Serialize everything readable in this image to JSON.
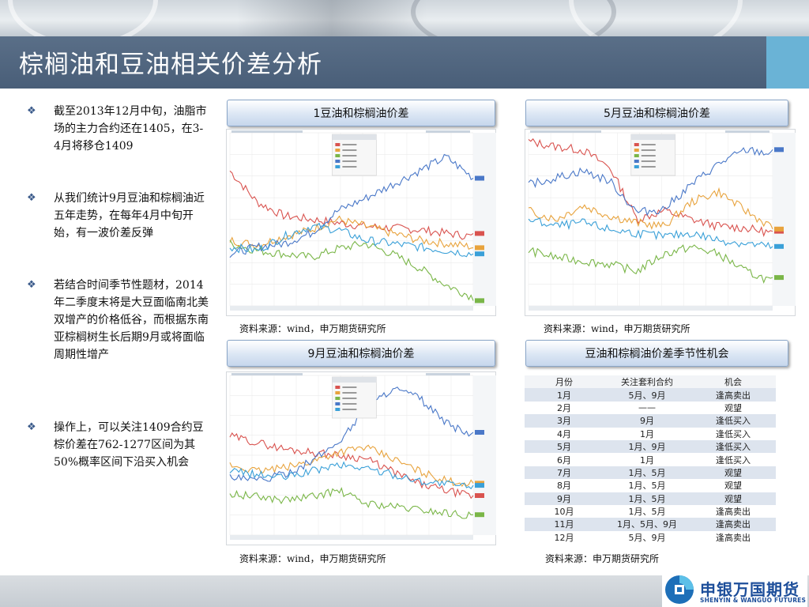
{
  "header": {
    "title": "棕榈油和豆油相关价差分析"
  },
  "bullets": [
    "截至2013年12月中旬，油脂市场的主力合约还在1405，在3-4月将移仓1409",
    "从我们统计9月豆油和棕榈油近五年走势，在每年4月中旬开始，有一波价差反弹",
    "若结合时间季节性题材，2014年二季度末将是大豆面临南北美双增产的价格低谷，而根据东南亚棕榈树生长后期9月或将面临周期性增产",
    "操作上，可以关注1409合约豆棕价差在762-1277区间为其50%概率区间下沿买入机会"
  ],
  "sections": {
    "chart1_title": "1豆油和棕榈油价差",
    "chart5_title": "5月豆油和棕榈油价差",
    "chart9_title": "9月豆油和棕榈油价差",
    "table_title": "豆油和棕榈油价差季节性机会"
  },
  "sources": {
    "wind": "资料来源：wind，申万期货研究所",
    "research": "资料来源：申万期货研究所"
  },
  "season_table": {
    "headers": [
      "月份",
      "关注套利合约",
      "机会"
    ],
    "rows": [
      {
        "month": "1月",
        "contract": "5月、9月",
        "chance": "逢高卖出"
      },
      {
        "month": "2月",
        "contract": "——",
        "chance": "观望"
      },
      {
        "month": "3月",
        "contract": "9月",
        "chance": "逢低买入"
      },
      {
        "month": "4月",
        "contract": "1月",
        "chance": "逢低买入"
      },
      {
        "month": "5月",
        "contract": "1月、9月",
        "chance": "逢低买入"
      },
      {
        "month": "6月",
        "contract": "1月",
        "chance": "逢低买入"
      },
      {
        "month": "7月",
        "contract": "1月、5月",
        "chance": "观望"
      },
      {
        "month": "8月",
        "contract": "1月、5月",
        "chance": "观望"
      },
      {
        "month": "9月",
        "contract": "1月、5月",
        "chance": "观望"
      },
      {
        "month": "10月",
        "contract": "1月、5月",
        "chance": "逢高卖出"
      },
      {
        "month": "11月",
        "contract": "1月、5月、9月",
        "chance": "逢高卖出"
      },
      {
        "month": "12月",
        "contract": "5月、9月",
        "chance": "逢高卖出"
      }
    ]
  },
  "legend_years": [
    "2013 (最新)",
    "2012",
    "2011",
    "2010",
    "2009"
  ],
  "series_colors": [
    "#d9534f",
    "#e8a33d",
    "#7ab648",
    "#4a78c8",
    "#3aa0d8"
  ],
  "logo": {
    "cn": "申银万国期货",
    "en": "SHENYIN & WANGUO FUTURES"
  }
}
